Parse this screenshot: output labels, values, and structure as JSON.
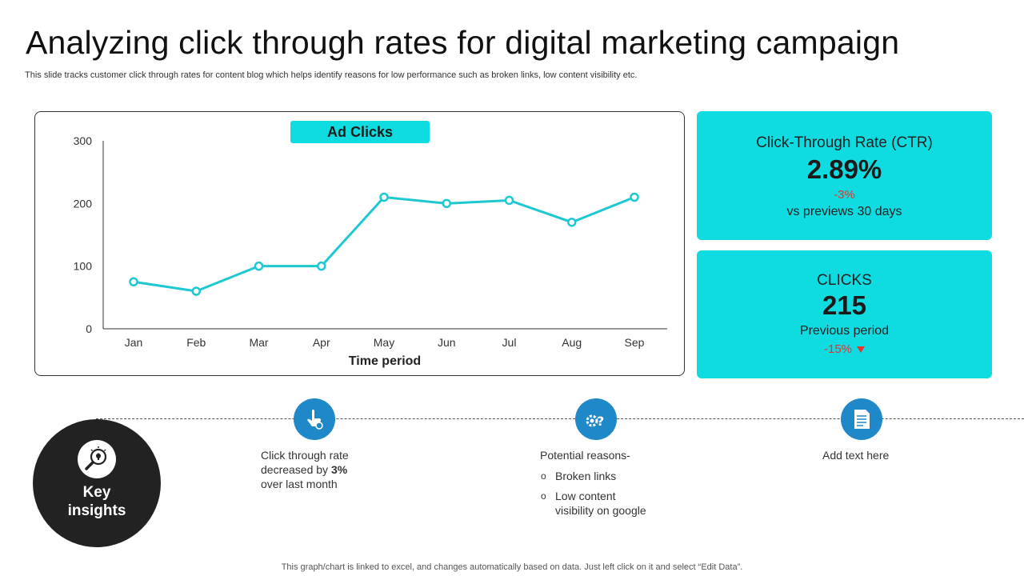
{
  "slide": {
    "title": "Analyzing click through rates for digital marketing campaign",
    "subtitle": "This slide tracks customer click through rates for content blog which helps identify reasons for low performance such as broken links, low content visibility etc.",
    "footer": "This graph/chart is linked to excel,  and changes automatically based on data. Just left click on it and select “Edit Data”."
  },
  "chart_data": {
    "type": "line",
    "title": "Ad Clicks",
    "xlabel": "Time period",
    "ylabel": "",
    "categories": [
      "Jan",
      "Feb",
      "Mar",
      "Apr",
      "May",
      "Jun",
      "Jul",
      "Aug",
      "Sep"
    ],
    "values": [
      75,
      60,
      100,
      100,
      210,
      200,
      205,
      170,
      210
    ],
    "ylim": [
      0,
      300
    ],
    "yticks": [
      0,
      100,
      200,
      300
    ],
    "grid": false,
    "line_color": "#1ec8d3",
    "title_bg": "#0fdce0"
  },
  "ctr_card": {
    "title": "Click-Through Rate (CTR)",
    "value": "2.89%",
    "change": "-3%",
    "note": "vs previews 30 days"
  },
  "clicks_card": {
    "title": "CLICKS",
    "value": "215",
    "note": "Previous period",
    "change": "-15%"
  },
  "insights": {
    "label_line1": "Key",
    "label_line2": "insights",
    "item1": {
      "line1": "Click through rate",
      "line2_prefix": "decreased by ",
      "line2_bold": "3%",
      "line3": "over last month"
    },
    "item2": {
      "heading": "Potential reasons-",
      "bullet_symbol": "o",
      "bullet1": "Broken links",
      "bullet2_line1": "Low content",
      "bullet2_line2": "visibility on google"
    },
    "item3": {
      "text": "Add text here"
    }
  },
  "colors": {
    "accent": "#0fdce0",
    "icon_blue": "#1e88c9",
    "dark": "#222222",
    "negative": "#e8322b"
  }
}
